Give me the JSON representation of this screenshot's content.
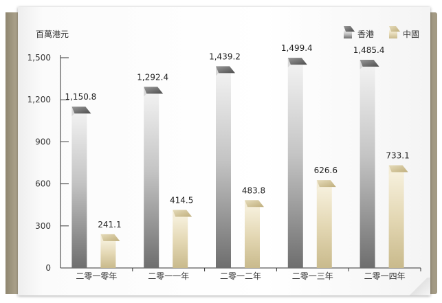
{
  "chart_data": {
    "type": "bar",
    "unit": "百萬港元",
    "categories": [
      "二零一零年",
      "二零一一年",
      "二零一二年",
      "二零一三年",
      "二零一四年"
    ],
    "series": [
      {
        "name": "香港",
        "values": [
          1150.8,
          1292.4,
          1439.2,
          1499.4,
          1485.4
        ],
        "value_labels": [
          "1,150.8",
          "1,292.4",
          "1,439.2",
          "1,499.4",
          "1,485.4"
        ],
        "color": "#8c8c8c"
      },
      {
        "name": "中國",
        "values": [
          241.1,
          414.5,
          483.8,
          626.6,
          733.1
        ],
        "value_labels": [
          "241.1",
          "414.5",
          "483.8",
          "626.6",
          "733.1"
        ],
        "color": "#d8cda8"
      }
    ],
    "yticks": [
      0,
      300,
      600,
      900,
      1200,
      1500
    ],
    "ytick_labels": [
      "0",
      "300",
      "600",
      "900",
      "1,200",
      "1,500"
    ],
    "ylim": [
      0,
      1500
    ],
    "grid": false,
    "legend_position": "top-right"
  }
}
